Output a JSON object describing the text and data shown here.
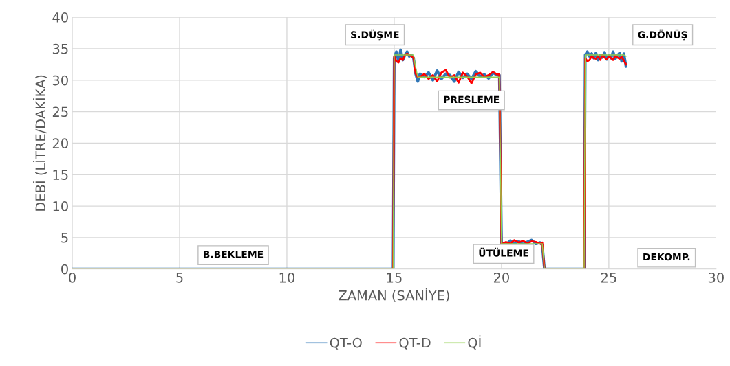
{
  "chart_data": {
    "type": "line",
    "xlabel": "ZAMAN (SANİYE)",
    "ylabel": "DEBİ (LİTRE/DAKİKA)",
    "x": [
      0,
      14.95,
      15.0,
      15.1,
      15.2,
      15.3,
      15.4,
      15.5,
      15.6,
      15.7,
      15.8,
      15.9,
      16.0,
      16.1,
      16.2,
      16.4,
      16.6,
      16.8,
      17.0,
      17.2,
      17.4,
      17.6,
      17.8,
      18.0,
      18.2,
      18.4,
      18.6,
      18.8,
      19.0,
      19.2,
      19.4,
      19.6,
      19.8,
      19.9,
      20.0,
      20.2,
      20.4,
      20.6,
      20.8,
      21.0,
      21.2,
      21.4,
      21.6,
      21.8,
      21.9,
      22.0,
      23.85,
      23.9,
      24.0,
      24.1,
      24.2,
      24.3,
      24.4,
      24.5,
      24.6,
      24.7,
      24.8,
      24.9,
      25.0,
      25.1,
      25.2,
      25.3,
      25.4,
      25.5,
      25.6,
      25.7,
      25.8
    ],
    "series": [
      {
        "name": "QT-O",
        "color": "#2e75b6",
        "values": [
          0,
          0,
          33.5,
          34.5,
          33,
          34.8,
          33.2,
          34,
          34.5,
          33.8,
          34,
          33.5,
          31,
          29.8,
          31,
          30.5,
          31.2,
          30,
          31.5,
          30.2,
          31,
          30.8,
          29.8,
          31.3,
          30.4,
          31,
          30.2,
          31.4,
          30.6,
          30.9,
          30.3,
          31.2,
          30.8,
          30.8,
          4.2,
          3.8,
          4.5,
          4.1,
          4.4,
          3.9,
          4.3,
          4.6,
          4.0,
          4.2,
          3.8,
          0,
          0,
          34,
          34.5,
          33.8,
          34.2,
          33.5,
          34.3,
          33.2,
          34,
          33.6,
          34.4,
          33.3,
          34,
          33.5,
          34.5,
          33.4,
          33.9,
          34.3,
          33,
          34.2,
          32.2
        ]
      },
      {
        "name": "QT-D",
        "color": "#ff0000",
        "values": [
          0,
          0,
          33.8,
          33,
          32.8,
          33.5,
          33.2,
          34,
          34.2,
          34,
          33.8,
          33.6,
          31,
          30.5,
          30.5,
          31,
          30.2,
          30.8,
          29.8,
          31.2,
          31.6,
          30.4,
          30.8,
          29.6,
          31.2,
          30.6,
          29.5,
          30.9,
          31.2,
          30.5,
          30.8,
          31.3,
          30.9,
          30.9,
          3.9,
          4.3,
          4.0,
          4.6,
          4.2,
          4.5,
          4.1,
          4.4,
          4.3,
          4.0,
          4.2,
          0,
          0,
          33.5,
          33,
          33.2,
          33.8,
          33.5,
          33.4,
          33.8,
          33.2,
          34,
          33.6,
          33.3,
          33.8,
          33.5,
          33.2,
          33.9,
          33.6,
          33.4,
          33.7,
          33.1,
          32.5
        ]
      },
      {
        "name": "Qİ",
        "color": "#92d050",
        "values": [
          0,
          0,
          34,
          34,
          34,
          34,
          34,
          34,
          34,
          34,
          34,
          34,
          32,
          30.5,
          30.5,
          30.5,
          30.5,
          30.5,
          30.5,
          30.5,
          30.5,
          30.5,
          30.5,
          30.5,
          30.5,
          30.5,
          30.5,
          30.5,
          30.5,
          30.5,
          30.5,
          30.5,
          30.5,
          30.5,
          4,
          4,
          4,
          4,
          4,
          4,
          4,
          4,
          4,
          4,
          4,
          0,
          0,
          34,
          34,
          34,
          34,
          34,
          34,
          34,
          34,
          34,
          34,
          34,
          34,
          34,
          34,
          34,
          34,
          34,
          34,
          34,
          33.8
        ]
      }
    ],
    "annotations": [
      "S.DÜŞME",
      "PRESLEME",
      "ÜTÜLEME",
      "G.DÖNÜŞ",
      "B.BEKLEME",
      "DEKOMP."
    ],
    "xlim": [
      0,
      30
    ],
    "xticks": [
      0,
      5,
      10,
      15,
      20,
      25,
      30
    ],
    "ylim": [
      0,
      40
    ],
    "yticks": [
      0,
      5,
      10,
      15,
      20,
      25,
      30,
      35,
      40
    ],
    "grid": true,
    "legend": "bottom",
    "marker": "none",
    "line_style": "solid"
  }
}
